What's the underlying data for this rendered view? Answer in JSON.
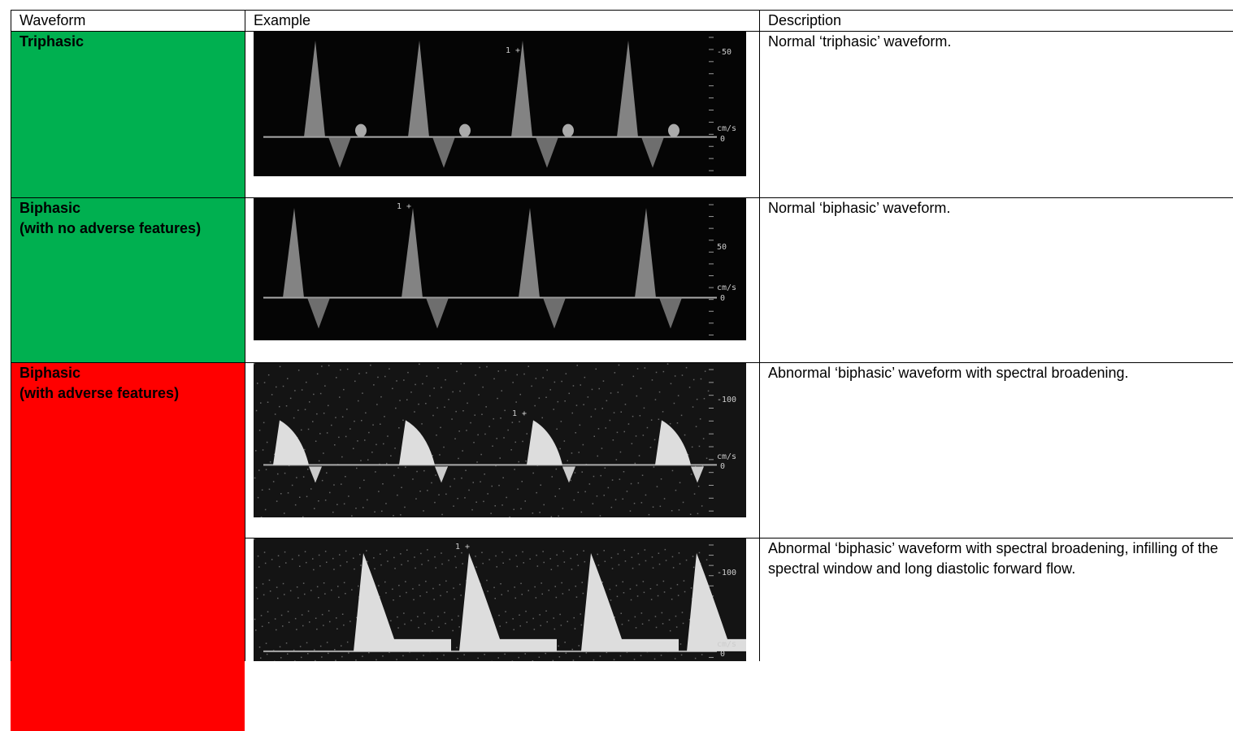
{
  "table": {
    "headers": [
      "Waveform",
      "Example",
      "Description"
    ],
    "waveforms": [
      {
        "lines": [
          "Triphasic"
        ],
        "color": "#00b050"
      },
      {
        "lines": [
          "Biphasic",
          "(with no adverse features)"
        ],
        "color": "#00b050"
      },
      {
        "lines": [
          "Biphasic",
          "(with adverse features)"
        ],
        "color": "#ff0000"
      }
    ],
    "examples": [
      {
        "description": "Normal ‘triphasic’ waveform.",
        "marker": "1 +",
        "scale_top": "-50",
        "unit": "cm/s",
        "zero": "0"
      },
      {
        "description": "Normal ‘biphasic’ waveform.",
        "marker": "1 +",
        "scale_top": "50",
        "unit": "cm/s",
        "zero": "0"
      },
      {
        "description": "Abnormal ‘biphasic’ waveform with spectral broadening.",
        "marker": "1 +",
        "scale_top": "-100",
        "unit": "cm/s",
        "zero": "0"
      },
      {
        "description": "Abnormal ‘biphasic’ waveform with spectral broadening, infilling of the spectral window and long diastolic forward flow.",
        "marker": "1 +",
        "scale_top": "-100",
        "unit": "cm/s",
        "zero": "0"
      }
    ]
  }
}
